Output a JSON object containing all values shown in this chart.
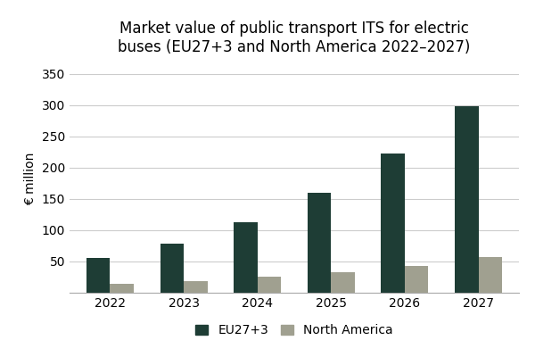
{
  "title": "Market value of public transport ITS for electric\nbuses (EU27+3 and North America 2022–2027)",
  "ylabel": "€ million",
  "years": [
    2022,
    2023,
    2024,
    2025,
    2026,
    2027
  ],
  "eu_values": [
    55,
    78,
    113,
    160,
    222,
    298
  ],
  "nam_values": [
    14,
    18,
    25,
    33,
    43,
    57
  ],
  "eu_color": "#1e3d35",
  "nam_color": "#a0a090",
  "ylim": [
    0,
    365
  ],
  "yticks": [
    0,
    50,
    100,
    150,
    200,
    250,
    300,
    350
  ],
  "legend_labels": [
    "EU27+3",
    "North America"
  ],
  "bar_width": 0.32,
  "bg_color": "#ffffff",
  "grid_color": "#cccccc",
  "title_fontsize": 12,
  "label_fontsize": 10,
  "tick_fontsize": 10,
  "legend_fontsize": 10
}
